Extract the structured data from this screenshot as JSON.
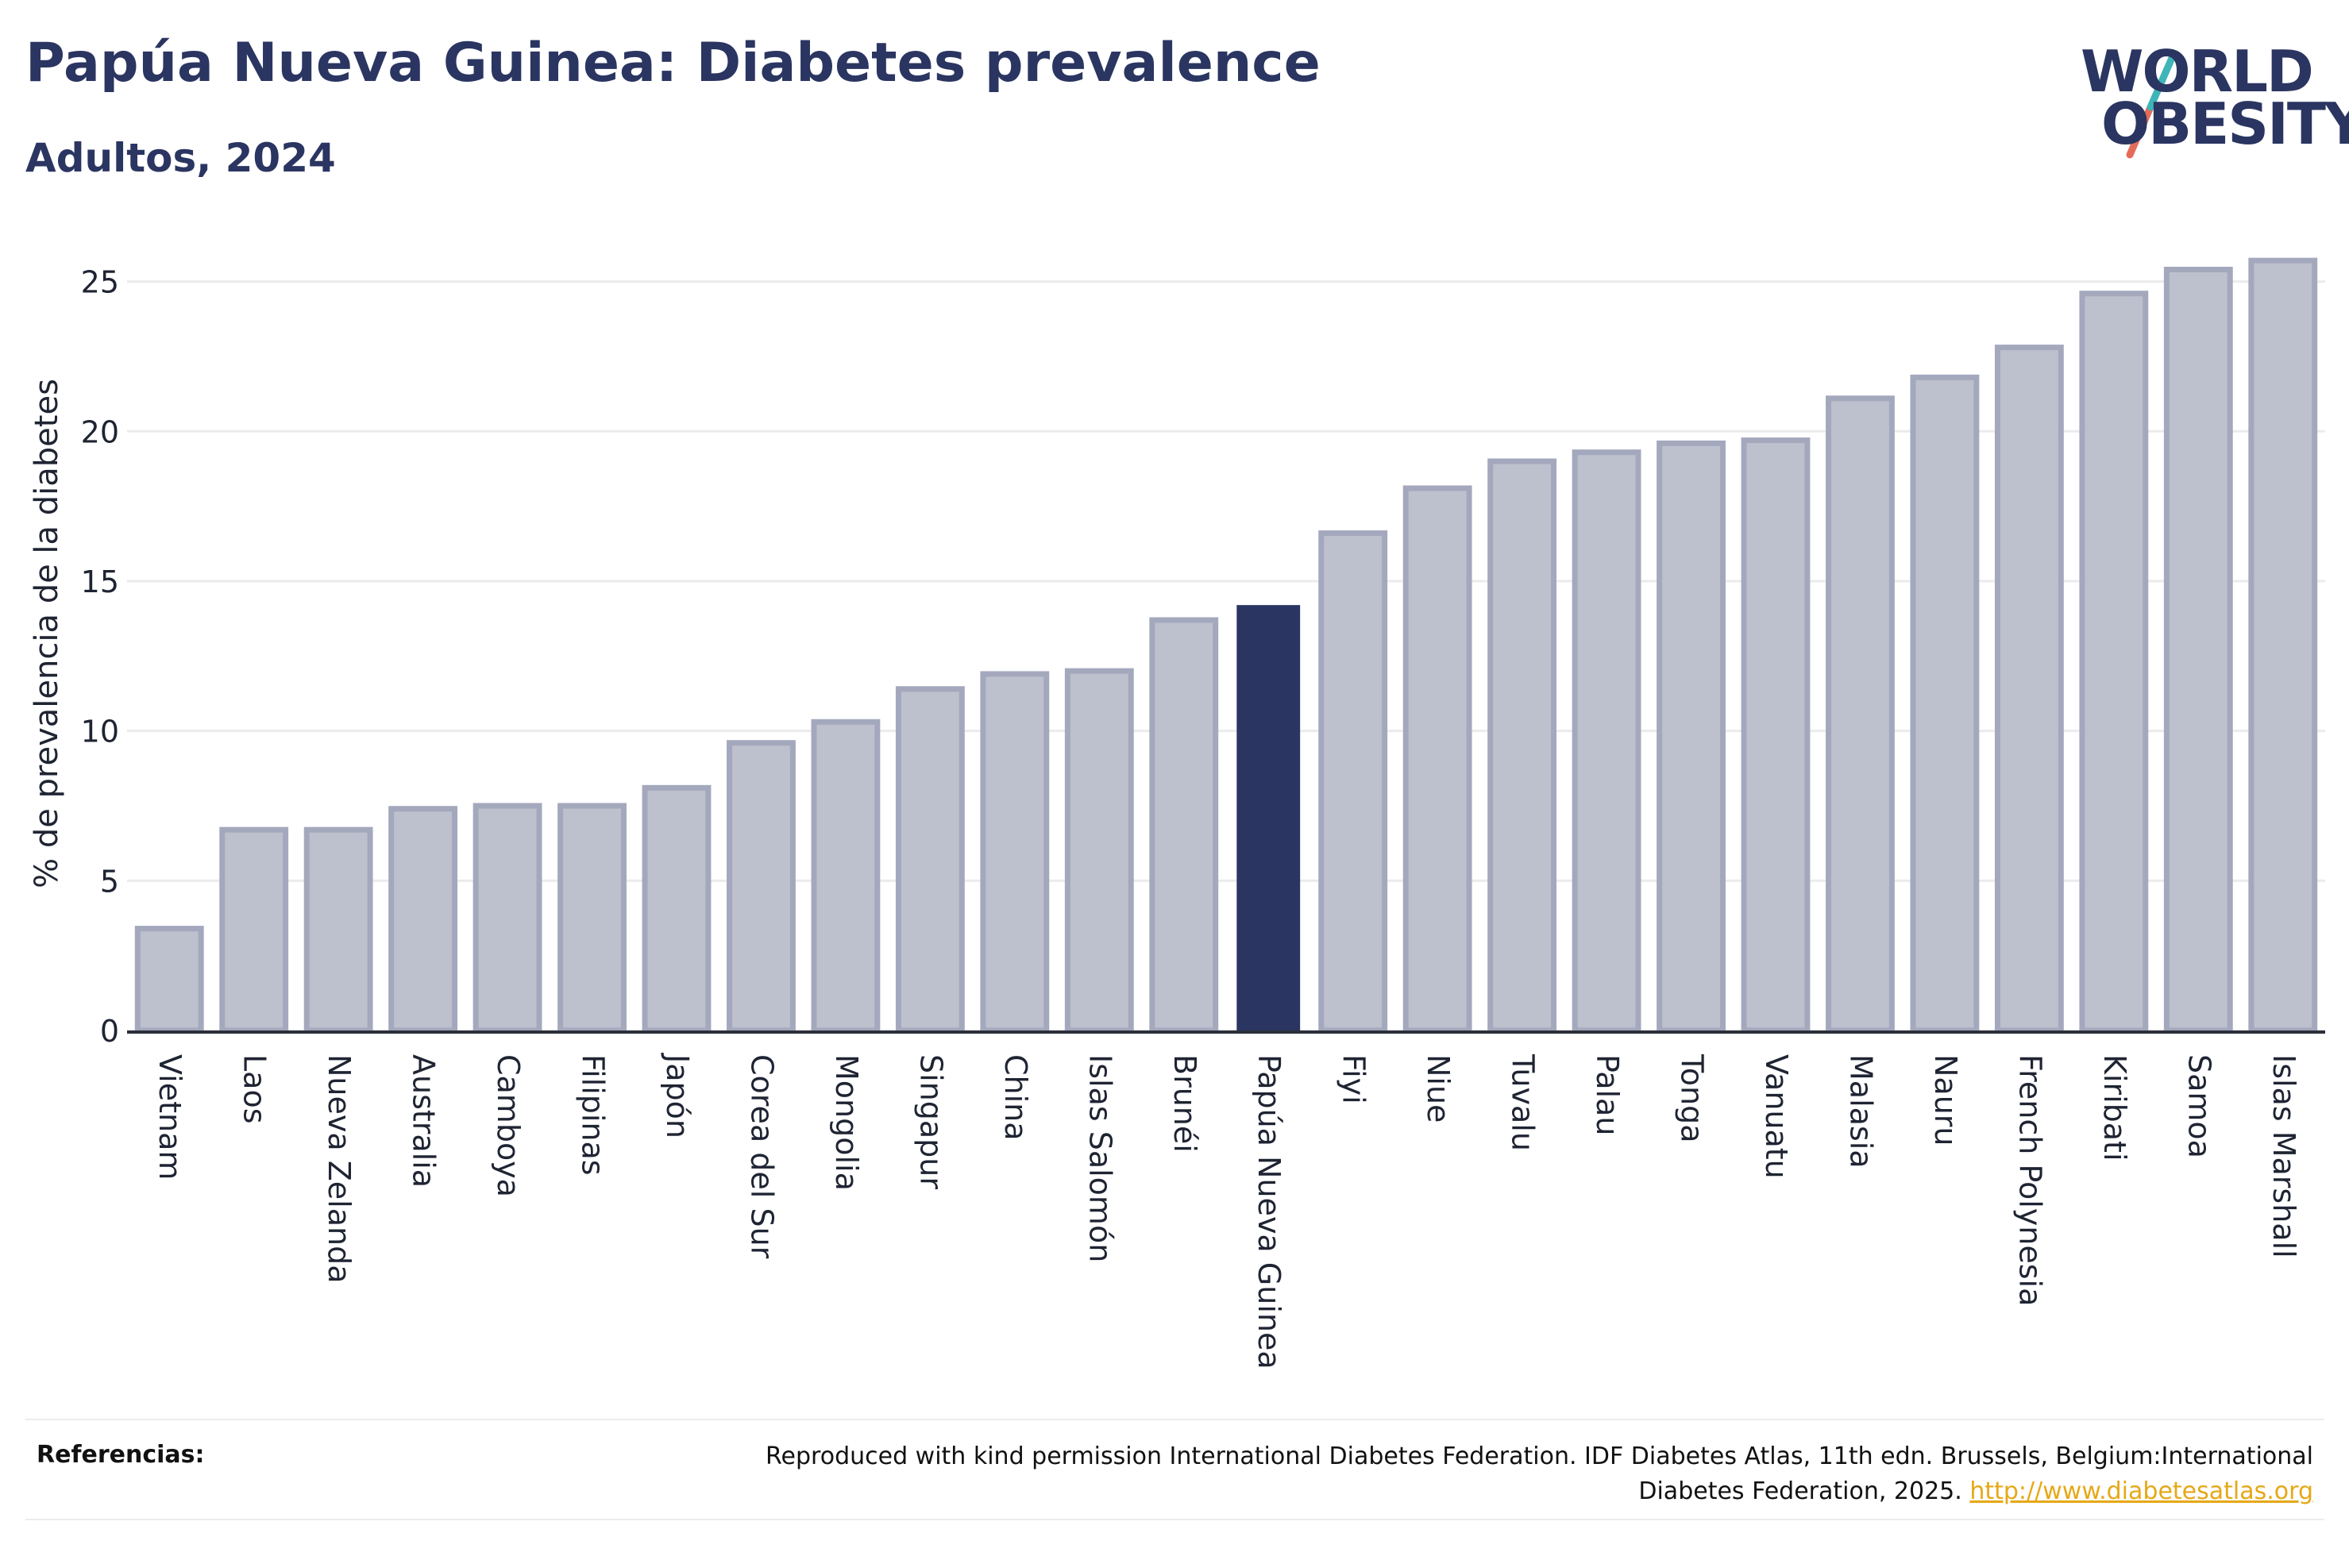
{
  "header": {
    "title": "Papúa Nueva Guinea: Diabetes prevalence",
    "subtitle": "Adultos, 2024"
  },
  "logo": {
    "line1": "WORLD",
    "line2": "OBESITY",
    "colors": {
      "text": "#2b3561",
      "slash_top": "#3fb5b7",
      "slash_bottom": "#e46b5a"
    }
  },
  "colors": {
    "highlight_bar": "#2b3561",
    "other_bar_fill": "#bdc0cd",
    "other_bar_stroke": "#a3a8bd",
    "grid": "#ebebeb",
    "axis": "#2b2f3a",
    "link": "#e6a817"
  },
  "chart_data": {
    "type": "bar",
    "ylabel": "% de prevalencia de la diabetes",
    "ylim": [
      0,
      26.5
    ],
    "yticks": [
      0,
      5,
      10,
      15,
      20,
      25
    ],
    "grid": true,
    "highlight": "Papúa Nueva Guinea",
    "categories": [
      "Vietnam",
      "Laos",
      "Nueva Zelanda",
      "Australia",
      "Camboya",
      "Filipinas",
      "Japón",
      "Corea del Sur",
      "Mongolia",
      "Singapur",
      "China",
      "Islas Salomón",
      "Brunéi",
      "Papúa Nueva Guinea",
      "Fiyi",
      "Niue",
      "Tuvalu",
      "Palau",
      "Tonga",
      "Vanuatu",
      "Malasia",
      "Nauru",
      "French Polynesia",
      "Kiribati",
      "Samoa",
      "Islas Marshall"
    ],
    "values": [
      3.4,
      6.7,
      6.7,
      7.4,
      7.5,
      7.5,
      8.1,
      9.6,
      10.3,
      11.4,
      11.9,
      12.0,
      13.7,
      14.2,
      16.6,
      18.1,
      19.0,
      19.3,
      19.6,
      19.7,
      21.1,
      21.8,
      22.8,
      24.6,
      25.4,
      25.7
    ]
  },
  "references": {
    "label": "Referencias:",
    "text": "Reproduced with kind permission International Diabetes Federation. IDF Diabetes Atlas, 11th edn. Brussels, Belgium:International Diabetes Federation, 2025.",
    "link": "http://www.diabetesatlas.org"
  }
}
